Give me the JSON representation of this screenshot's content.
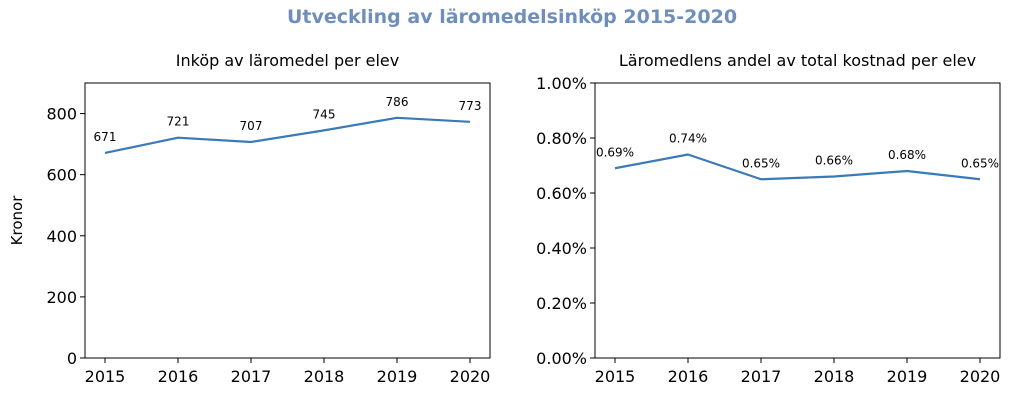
{
  "title": "Utveckling av läromedelsinköp 2015-2020",
  "colors": {
    "line": "#3a7ab8",
    "title": "#6f8fba"
  },
  "chart_data": [
    {
      "type": "line",
      "title": "Inköp av läromedel per elev",
      "xlabel": "",
      "ylabel": "Kronor",
      "x": [
        2015,
        2016,
        2017,
        2018,
        2019,
        2020
      ],
      "xticks": [
        "2015",
        "2016",
        "2017",
        "2018",
        "2019",
        "2020"
      ],
      "values": [
        671,
        721,
        707,
        745,
        786,
        773
      ],
      "data_labels": [
        "671",
        "721",
        "707",
        "745",
        "786",
        "773"
      ],
      "ylim": [
        0,
        900
      ],
      "yticks": [
        0,
        200,
        400,
        600,
        800
      ],
      "ytick_labels": [
        "0",
        "200",
        "400",
        "600",
        "800"
      ],
      "grid": false
    },
    {
      "type": "line",
      "title": "Läromedlens andel av total kostnad per elev",
      "xlabel": "",
      "ylabel": "",
      "x": [
        2015,
        2016,
        2017,
        2018,
        2019,
        2020
      ],
      "xticks": [
        "2015",
        "2016",
        "2017",
        "2018",
        "2019",
        "2020"
      ],
      "values": [
        0.69,
        0.74,
        0.65,
        0.66,
        0.68,
        0.65
      ],
      "data_labels": [
        "0.69%",
        "0.74%",
        "0.65%",
        "0.66%",
        "0.68%",
        "0.65%"
      ],
      "ylim": [
        0,
        1.0
      ],
      "yticks": [
        0,
        0.2,
        0.4,
        0.6,
        0.8,
        1.0
      ],
      "ytick_labels": [
        "0.00%",
        "0.20%",
        "0.40%",
        "0.60%",
        "0.80%",
        "1.00%"
      ],
      "grid": false
    }
  ]
}
